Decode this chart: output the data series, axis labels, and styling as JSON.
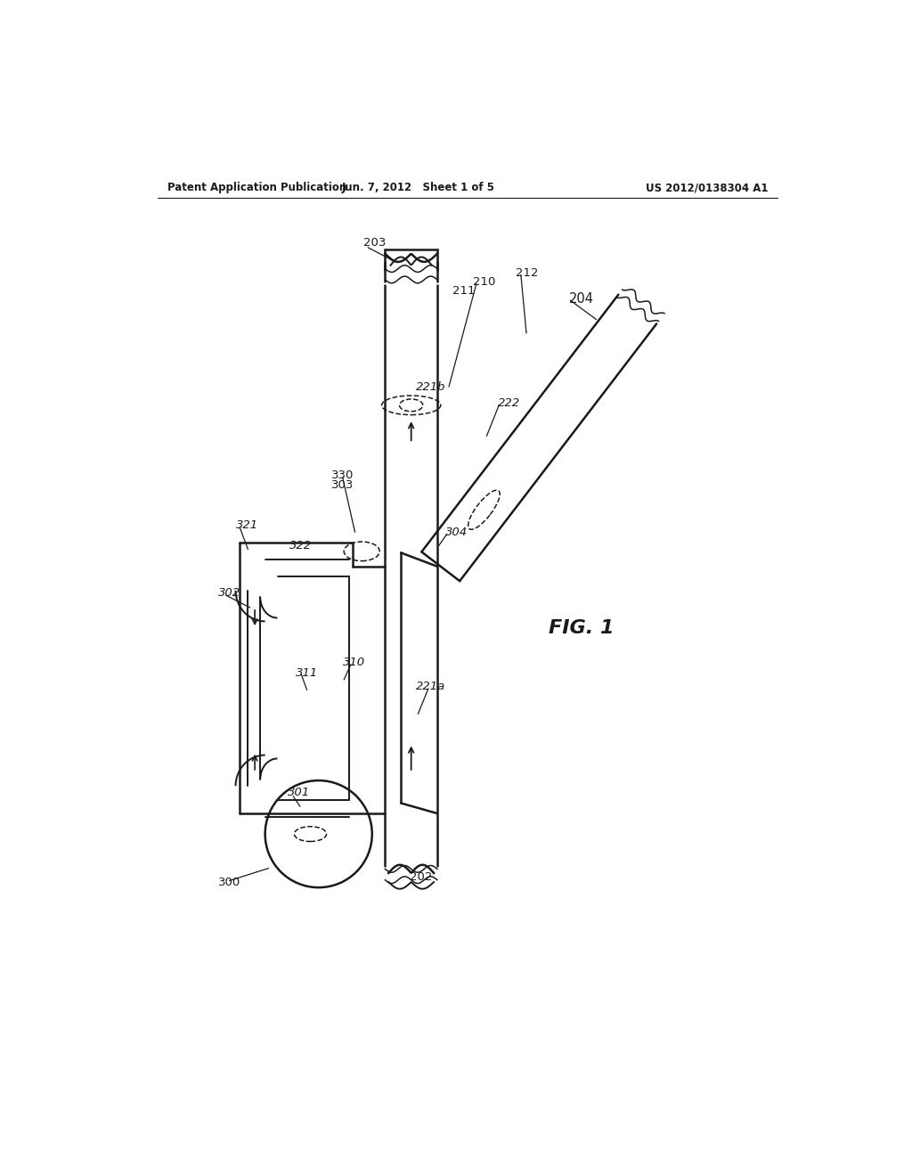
{
  "header_left": "Patent Application Publication",
  "header_center": "Jun. 7, 2012   Sheet 1 of 5",
  "header_right": "US 2012/0138304 A1",
  "fig_label": "FIG. 1",
  "bg_color": "#ffffff",
  "line_color": "#1a1a1a"
}
